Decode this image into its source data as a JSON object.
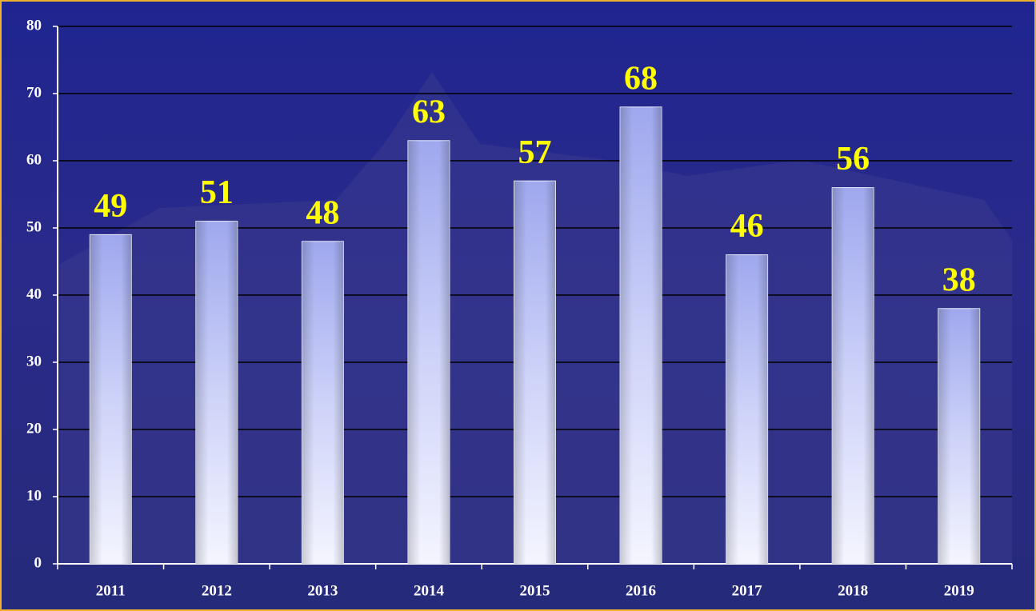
{
  "chart_data": {
    "type": "bar",
    "categories": [
      "2011",
      "2012",
      "2013",
      "2014",
      "2015",
      "2016",
      "2017",
      "2018",
      "2019"
    ],
    "values": [
      49,
      51,
      48,
      63,
      57,
      68,
      46,
      56,
      38
    ],
    "color": "#eef0ff",
    "label_color": "#ffff00",
    "ylim": [
      0,
      80
    ],
    "yticks": [
      0,
      10,
      20,
      30,
      40,
      50,
      60,
      70,
      80
    ],
    "grid": true
  }
}
